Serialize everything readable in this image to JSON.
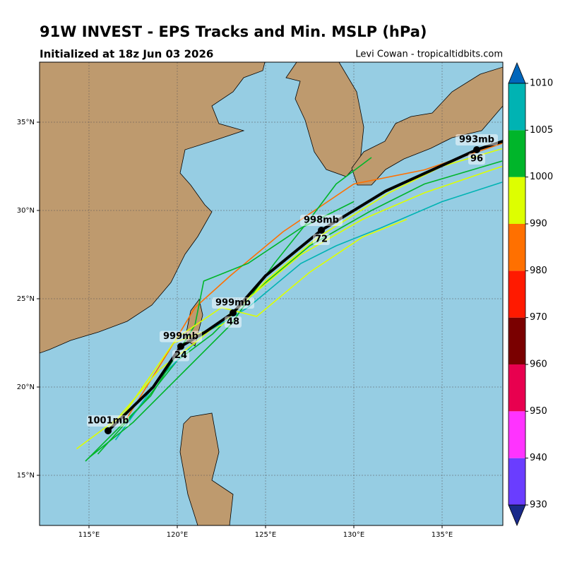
{
  "chart_data": {
    "type": "track_map",
    "title": "91W INVEST - EPS Tracks and Min. MSLP (hPa)",
    "subtitle": "Initialized at 18z Jun 03 2026",
    "credit": "Levi Cowan - tropicaltidbits.com",
    "xlim": [
      112.2,
      138.44
    ],
    "ylim": [
      12.16,
      38.4
    ],
    "xticks": [
      {
        "value": 115,
        "label": "115°E"
      },
      {
        "value": 120,
        "label": "120°E"
      },
      {
        "value": 125,
        "label": "125°E"
      },
      {
        "value": 130,
        "label": "130°E"
      },
      {
        "value": 135,
        "label": "135°E"
      }
    ],
    "yticks": [
      {
        "value": 15,
        "label": "15°N"
      },
      {
        "value": 20,
        "label": "20°N"
      },
      {
        "value": 25,
        "label": "25°N"
      },
      {
        "value": 30,
        "label": "30°N"
      },
      {
        "value": 35,
        "label": "35°N"
      }
    ],
    "grid": true,
    "members": [
      {
        "color": "#00b52a",
        "lon": [
          115.5,
          118,
          120,
          122,
          124.5,
          127.5,
          131,
          134,
          138.4
        ],
        "lat": [
          16.2,
          19,
          21.5,
          23,
          25.5,
          28,
          30,
          31.5,
          32.8
        ]
      },
      {
        "color": "#ddff00",
        "lon": [
          114.3,
          117,
          119.8,
          122.5,
          125,
          128,
          132,
          135,
          138.4
        ],
        "lat": [
          16.5,
          18.5,
          22.5,
          23.5,
          26,
          28.5,
          31,
          32.5,
          33.5
        ]
      },
      {
        "color": "#ff7000",
        "lon": [
          117,
          119.5,
          121,
          123,
          126,
          130,
          134,
          138.4
        ],
        "lat": [
          18,
          22,
          24.5,
          26.3,
          28.8,
          31.5,
          32.3,
          33.8
        ]
      },
      {
        "color": "#00b3b3",
        "lon": [
          116.5,
          119,
          121.5,
          124,
          127,
          129,
          131.5,
          135,
          138.4
        ],
        "lat": [
          17,
          20.5,
          23,
          24.5,
          27,
          28,
          29,
          30.5,
          31.6
        ]
      },
      {
        "color": "#00b52a",
        "lon": [
          115,
          117.5,
          120.5,
          123,
          125.5,
          127.5,
          129,
          131
        ],
        "lat": [
          16,
          18,
          21,
          23.5,
          27,
          29.5,
          31.5,
          33
        ]
      },
      {
        "color": "#ddff00",
        "lon": [
          116,
          119,
          121,
          124,
          127,
          130.5,
          134,
          138.4
        ],
        "lat": [
          17.5,
          21,
          22.5,
          25,
          27.5,
          29.5,
          31,
          32.5
        ]
      },
      {
        "color": "#00b52a",
        "lon": [
          114.8,
          118.5,
          121,
          121.5,
          124,
          127,
          130
        ],
        "lat": [
          15.8,
          19.5,
          23.5,
          26,
          27,
          29,
          30.5
        ]
      },
      {
        "color": "#ddff00",
        "lon": [
          117,
          120,
          122.5,
          124.5,
          127.5,
          130.5,
          133
        ],
        "lat": [
          18.5,
          22.8,
          24.5,
          24,
          26.5,
          28.5,
          29.5
        ]
      }
    ],
    "mean_track": {
      "color": "#000000",
      "lon": [
        116.08,
        118.64,
        120.2,
        121.56,
        123.16,
        125,
        128.16,
        131.8,
        136.96,
        138.44
      ],
      "lat": [
        17.52,
        20,
        22.3,
        23.1,
        24.2,
        26.3,
        28.88,
        31.1,
        33.44,
        33.92
      ]
    },
    "labeled_points": [
      {
        "lon": 116.08,
        "lat": 17.52,
        "pressure": 1001,
        "pressure_label": "1001mb"
      },
      {
        "lon": 120.2,
        "lat": 22.3,
        "pressure": 999,
        "pressure_label": "999mb",
        "hour": 24
      },
      {
        "lon": 123.16,
        "lat": 24.2,
        "pressure": 999,
        "pressure_label": "999mb",
        "hour": 48
      },
      {
        "lon": 128.16,
        "lat": 28.88,
        "pressure": 998,
        "pressure_label": "998mb",
        "hour": 72
      },
      {
        "lon": 136.96,
        "lat": 33.44,
        "pressure": 993,
        "pressure_label": "993mb",
        "hour": 96
      }
    ],
    "colorbar": {
      "bounds": [
        930,
        940,
        950,
        960,
        970,
        980,
        990,
        1000,
        1005,
        1010
      ],
      "colors": [
        "#6a3dff",
        "#ff33ff",
        "#e8004f",
        "#7a0000",
        "#ff1a00",
        "#ff7000",
        "#ddff00",
        "#00b52a",
        "#00b3b3"
      ],
      "under_color": "#1a2a8a",
      "over_color": "#0066bb"
    }
  }
}
